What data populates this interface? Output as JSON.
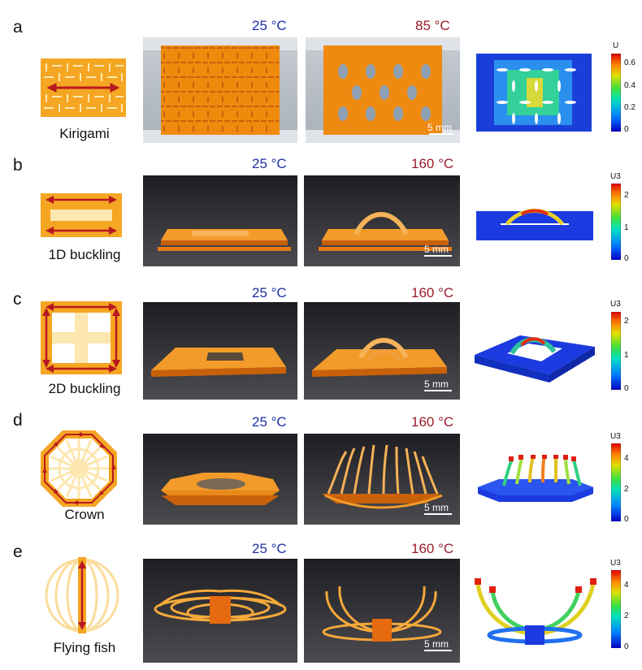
{
  "panels": [
    {
      "letter": "a",
      "caption": "Kirigami",
      "t_cold": "25 °C",
      "t_hot": "85 °C",
      "scale": "5 mm",
      "cbar_title": "U",
      "ticks": [
        "0.6",
        "0.4",
        "0.2",
        "0"
      ]
    },
    {
      "letter": "b",
      "caption": "1D buckling",
      "t_cold": "25 °C",
      "t_hot": "160 °C",
      "scale": "5 mm",
      "cbar_title": "U3",
      "ticks": [
        "2",
        "1",
        "0"
      ]
    },
    {
      "letter": "c",
      "caption": "2D buckling",
      "t_cold": "25 °C",
      "t_hot": "160 °C",
      "scale": "5 mm",
      "cbar_title": "U3",
      "ticks": [
        "2",
        "1",
        "0"
      ]
    },
    {
      "letter": "d",
      "caption": "Crown",
      "t_cold": "25 °C",
      "t_hot": "160 °C",
      "scale": "5 mm",
      "cbar_title": "U3",
      "ticks": [
        "4",
        "2",
        "0"
      ]
    },
    {
      "letter": "e",
      "caption": "Flying fish",
      "t_cold": "25 °C",
      "t_hot": "160 °C",
      "scale": "5 mm",
      "cbar_title": "U3",
      "ticks": [
        "4",
        "2",
        "0"
      ]
    }
  ],
  "colors": {
    "orange": "#f5a623",
    "dark_red": "#b8191f",
    "cold_label": "#1d2fa8",
    "hot_label": "#9b1b2a",
    "pale": "#fde7b0"
  }
}
